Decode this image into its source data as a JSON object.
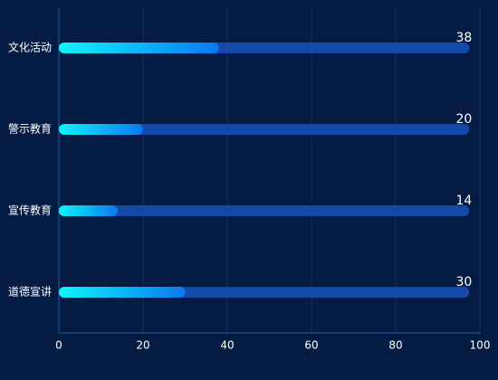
{
  "chart_data": {
    "type": "bar",
    "orientation": "horizontal",
    "categories": [
      "文化活动",
      "警示教育",
      "宣传教育",
      "道德宣讲"
    ],
    "values": [
      38,
      20,
      14,
      30
    ],
    "colors": [
      "#0ff4fb",
      "#0b78f0"
    ],
    "xlim": [
      0,
      100
    ],
    "xticks": [
      0,
      20,
      40,
      60,
      80,
      100
    ],
    "grid": true
  }
}
